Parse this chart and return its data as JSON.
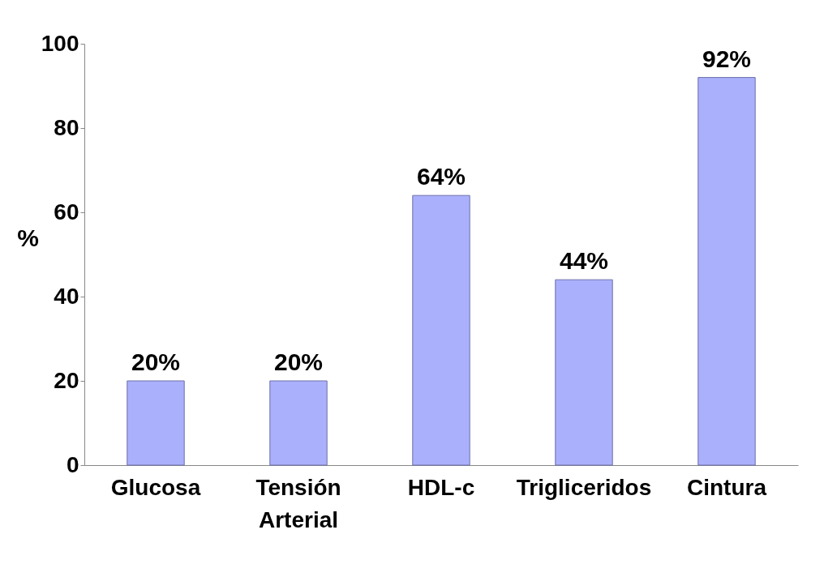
{
  "chart_data": {
    "type": "bar",
    "ylabel": "%",
    "categories": [
      "Glucosa",
      "Tensión Arterial",
      "HDL-c",
      "Trigliceridos",
      "Cintura"
    ],
    "values": [
      20,
      20,
      64,
      44,
      92
    ],
    "value_labels": [
      "20%",
      "20%",
      "64%",
      "44%",
      "92%"
    ],
    "color": "#aab0fc",
    "ylim": [
      0,
      100
    ],
    "yticks": [
      0,
      20,
      40,
      60,
      80,
      100
    ],
    "grid": false
  }
}
